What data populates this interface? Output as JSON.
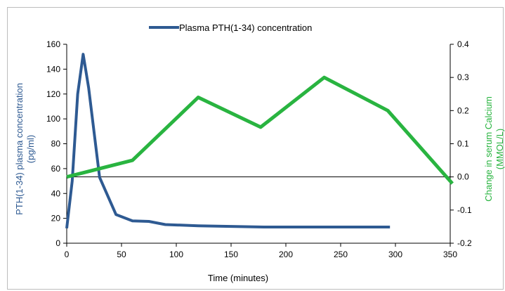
{
  "chart_data": {
    "type": "line",
    "title": "",
    "xlabel": "Time (minutes)",
    "ylabel_left": "PTH(1-34) plasma concentration (pg/ml)",
    "ylabel_left_lines": [
      "PTH(1-34) plasma concentration",
      "(pg/ml)"
    ],
    "ylabel_right": "Change in serum Calcium (MMOL/L)",
    "ylabel_right_lines": [
      "Change in serum Calcium",
      "(MMOL/L)"
    ],
    "xlim": [
      0,
      350
    ],
    "ylim_left": [
      0,
      160
    ],
    "ylim_right": [
      -0.2,
      0.4
    ],
    "x_ticks": [
      "0",
      "50",
      "100",
      "150",
      "200",
      "250",
      "300",
      "350"
    ],
    "y_left_ticks": [
      "0",
      "20",
      "40",
      "60",
      "80",
      "100",
      "120",
      "140",
      "160"
    ],
    "y_right_ticks": [
      "-0.2",
      "-0.1",
      "0.0",
      "0.1",
      "0.2",
      "0.3",
      "0.4"
    ],
    "legend": {
      "position": "top-center",
      "entries": [
        "Plasma PTH(1-34) concentration"
      ]
    },
    "grid": false,
    "reference_line": {
      "axis": "right",
      "y": 0.0
    },
    "series": [
      {
        "name": "Plasma PTH(1-34) concentration",
        "axis": "left",
        "color": "#2e5a92",
        "x": [
          0,
          5,
          10,
          15,
          20,
          30,
          45,
          60,
          75,
          90,
          120,
          180,
          240,
          295
        ],
        "y": [
          12,
          50,
          120,
          152,
          125,
          53,
          23,
          18,
          17.5,
          15,
          14,
          13,
          13,
          13
        ]
      },
      {
        "name": "",
        "axis": "right",
        "color": "#29b440",
        "x": [
          0,
          60,
          120,
          177,
          235,
          293,
          352
        ],
        "y": [
          0.0,
          0.05,
          0.24,
          0.15,
          0.3,
          0.2,
          -0.02
        ]
      }
    ]
  }
}
